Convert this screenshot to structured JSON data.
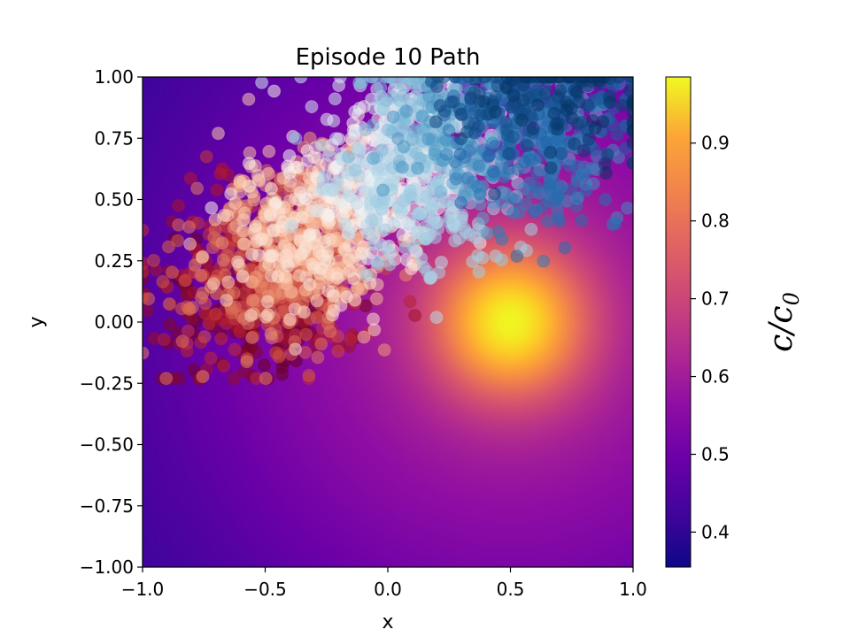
{
  "chart_data": {
    "type": "heatmap",
    "title": "Episode 10 Path",
    "xlabel": "x",
    "ylabel": "y",
    "xlim": [
      -1.0,
      1.0
    ],
    "ylim": [
      -1.0,
      1.0
    ],
    "xticks": [
      -1.0,
      -0.5,
      0.0,
      0.5,
      1.0
    ],
    "xtick_labels": [
      "−1.0",
      "−0.5",
      "0.0",
      "0.5",
      "1.0"
    ],
    "yticks": [
      1.0,
      0.75,
      0.5,
      0.25,
      0.0,
      -0.25,
      -0.5,
      -0.75,
      -1.0
    ],
    "ytick_labels": [
      "1.00",
      "0.75",
      "0.50",
      "0.25",
      "0.00",
      "−0.25",
      "−0.50",
      "−0.75",
      "−1.00"
    ],
    "heatmap": {
      "colormap": "plasma",
      "peak_location": [
        0.5,
        0.0
      ],
      "value_range": [
        0.36,
        0.98
      ]
    },
    "colorbar": {
      "label": "c/c",
      "label_subscript": "0",
      "range": [
        0.355,
        0.985
      ],
      "ticks": [
        0.4,
        0.5,
        0.6,
        0.7,
        0.8,
        0.9
      ],
      "tick_labels": [
        "0.4",
        "0.5",
        "0.6",
        "0.7",
        "0.8",
        "0.9"
      ]
    },
    "scatter_path": {
      "colormap": "RdBu (dark red at start, white mid, dark blue at end)",
      "start_region_center": [
        -0.5,
        0.05
      ],
      "end_region": [
        0.9,
        0.95
      ],
      "x_range": [
        -1.0,
        1.0
      ],
      "y_range": [
        -0.23,
        1.0
      ],
      "marker_alpha": 0.55
    }
  }
}
